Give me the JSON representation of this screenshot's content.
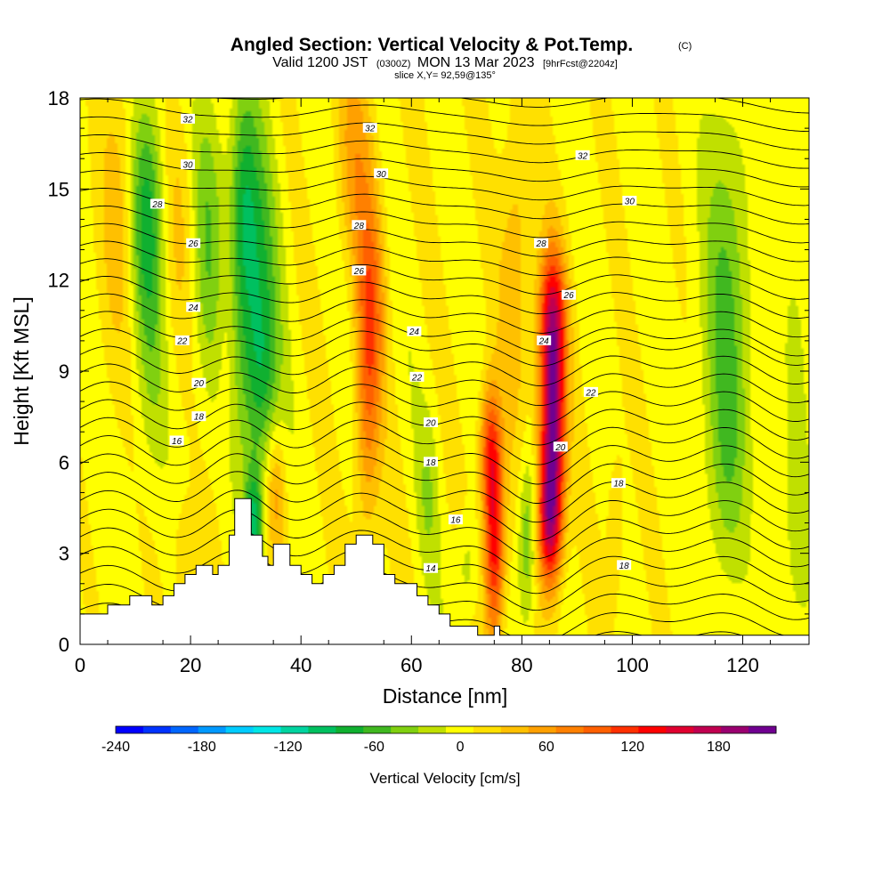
{
  "title": {
    "main": "Angled Section: Vertical Velocity & Pot.Temp.",
    "main_badge": "(C)",
    "sub_valid": "Valid 1200 JST",
    "sub_utc": "(0300Z)",
    "sub_date": "MON 13 Mar 2023",
    "sub_fcst": "[9hrFcst@2204z]",
    "slice": "slice X,Y= 92,59@135°"
  },
  "colorbar": {
    "title": "Vertical Velocity [cm/s]",
    "tick_labels": [
      "-240",
      "-180",
      "-120",
      "-60",
      "0",
      "60",
      "120",
      "180"
    ],
    "tick_values": [
      -240,
      -180,
      -120,
      -60,
      0,
      60,
      120,
      180
    ],
    "range": [
      -240,
      220
    ],
    "colors": [
      "#0000ff",
      "#0033ff",
      "#0066ff",
      "#0099ff",
      "#00ccff",
      "#00e6e6",
      "#00d4a0",
      "#00c060",
      "#10b030",
      "#40b820",
      "#80d010",
      "#c0e000",
      "#ffff00",
      "#ffe000",
      "#ffc000",
      "#ffa000",
      "#ff8000",
      "#ff6000",
      "#ff3000",
      "#ff0000",
      "#e00030",
      "#c00050",
      "#9a0070",
      "#700090"
    ]
  },
  "chart_data": {
    "type": "heatmap",
    "xlabel": "Distance [nm]",
    "ylabel": "Height [Kft MSL]",
    "xlim": [
      0,
      132
    ],
    "ylim": [
      0,
      18
    ],
    "x_ticks": [
      0,
      20,
      40,
      60,
      80,
      100,
      120
    ],
    "y_ticks": [
      0,
      3,
      6,
      9,
      12,
      15,
      18
    ],
    "series": [
      {
        "name": "Vertical Velocity",
        "units": "cm/s"
      },
      {
        "name": "Pot.Temp.",
        "units": "C"
      }
    ],
    "terrain_kft": [
      [
        0,
        1.0
      ],
      [
        5,
        1.0
      ],
      [
        5,
        1.3
      ],
      [
        9,
        1.3
      ],
      [
        9,
        1.6
      ],
      [
        13,
        1.6
      ],
      [
        13,
        1.3
      ],
      [
        15,
        1.3
      ],
      [
        15,
        1.6
      ],
      [
        17,
        1.6
      ],
      [
        17,
        2.0
      ],
      [
        19,
        2.0
      ],
      [
        19,
        2.3
      ],
      [
        21,
        2.3
      ],
      [
        21,
        2.6
      ],
      [
        24,
        2.6
      ],
      [
        24,
        2.3
      ],
      [
        25,
        2.3
      ],
      [
        25,
        2.6
      ],
      [
        27,
        2.6
      ],
      [
        27,
        3.6
      ],
      [
        28,
        3.6
      ],
      [
        28,
        4.8
      ],
      [
        31,
        4.8
      ],
      [
        31,
        3.6
      ],
      [
        33,
        3.6
      ],
      [
        33,
        2.9
      ],
      [
        34,
        2.9
      ],
      [
        34,
        2.6
      ],
      [
        35,
        2.6
      ],
      [
        35,
        3.3
      ],
      [
        38,
        3.3
      ],
      [
        38,
        2.6
      ],
      [
        40,
        2.6
      ],
      [
        40,
        2.3
      ],
      [
        42,
        2.3
      ],
      [
        42,
        2.0
      ],
      [
        44,
        2.0
      ],
      [
        44,
        2.3
      ],
      [
        46,
        2.3
      ],
      [
        46,
        2.6
      ],
      [
        48,
        2.6
      ],
      [
        48,
        3.3
      ],
      [
        50,
        3.3
      ],
      [
        50,
        3.6
      ],
      [
        53,
        3.6
      ],
      [
        53,
        3.3
      ],
      [
        55,
        3.3
      ],
      [
        55,
        2.3
      ],
      [
        57,
        2.3
      ],
      [
        57,
        2.0
      ],
      [
        61,
        2.0
      ],
      [
        61,
        1.6
      ],
      [
        63,
        1.6
      ],
      [
        63,
        1.3
      ],
      [
        65,
        1.3
      ],
      [
        65,
        1.0
      ],
      [
        67,
        1.0
      ],
      [
        67,
        0.6
      ],
      [
        72,
        0.6
      ],
      [
        72,
        0.3
      ],
      [
        75,
        0.3
      ],
      [
        75,
        0.6
      ],
      [
        76,
        0.6
      ],
      [
        76,
        0.3
      ],
      [
        132,
        0.3
      ]
    ],
    "theta_contours_c": [
      14,
      16,
      18,
      20,
      22,
      24,
      26,
      28,
      30,
      32
    ],
    "theta_labels": [
      {
        "v": "32",
        "x": 19.5,
        "y": 17.3
      },
      {
        "v": "30",
        "x": 19.5,
        "y": 15.8
      },
      {
        "v": "28",
        "x": 14,
        "y": 14.5
      },
      {
        "v": "26",
        "x": 20.5,
        "y": 13.2
      },
      {
        "v": "24",
        "x": 20.5,
        "y": 11.1
      },
      {
        "v": "22",
        "x": 18.5,
        "y": 10.0
      },
      {
        "v": "20",
        "x": 21.5,
        "y": 8.6
      },
      {
        "v": "18",
        "x": 21.5,
        "y": 7.5
      },
      {
        "v": "16",
        "x": 17.5,
        "y": 6.7
      },
      {
        "v": "32",
        "x": 52.5,
        "y": 17.0
      },
      {
        "v": "30",
        "x": 54.5,
        "y": 15.5
      },
      {
        "v": "28",
        "x": 50.5,
        "y": 13.8
      },
      {
        "v": "26",
        "x": 50.5,
        "y": 12.3
      },
      {
        "v": "24",
        "x": 60.5,
        "y": 10.3
      },
      {
        "v": "22",
        "x": 61,
        "y": 8.8
      },
      {
        "v": "20",
        "x": 63.5,
        "y": 7.3
      },
      {
        "v": "18",
        "x": 63.5,
        "y": 6.0
      },
      {
        "v": "16",
        "x": 68,
        "y": 4.1
      },
      {
        "v": "14",
        "x": 63.5,
        "y": 2.5
      },
      {
        "v": "32",
        "x": 91,
        "y": 16.1
      },
      {
        "v": "30",
        "x": 99.5,
        "y": 14.6
      },
      {
        "v": "28",
        "x": 83.5,
        "y": 13.2
      },
      {
        "v": "26",
        "x": 88.5,
        "y": 11.5
      },
      {
        "v": "24",
        "x": 84,
        "y": 10.0
      },
      {
        "v": "22",
        "x": 92.5,
        "y": 8.3
      },
      {
        "v": "20",
        "x": 87,
        "y": 6.5
      },
      {
        "v": "18",
        "x": 97.5,
        "y": 5.3
      },
      {
        "v": "18",
        "x": 98.5,
        "y": 2.6
      }
    ],
    "vv_features": [
      {
        "x": 12,
        "z": 14,
        "sx": 2.2,
        "sz": 2.8,
        "v": -80
      },
      {
        "x": 13,
        "z": 9,
        "sx": 2.0,
        "sz": 2.5,
        "v": -25
      },
      {
        "x": 23,
        "z": 13.5,
        "sx": 2.0,
        "sz": 3.5,
        "v": -45
      },
      {
        "x": 31,
        "z": 12,
        "sx": 3.0,
        "sz": 3.5,
        "v": -85
      },
      {
        "x": 33,
        "z": 8.5,
        "sx": 2.0,
        "sz": 2.0,
        "v": -50
      },
      {
        "x": 29.5,
        "z": 15,
        "sx": 1.6,
        "sz": 2.5,
        "v": -40
      },
      {
        "x": 31.5,
        "z": 4,
        "sx": 1.2,
        "sz": 1.3,
        "v": -90
      },
      {
        "x": 7,
        "z": 14,
        "sx": 2.5,
        "sz": 3.5,
        "v": 35
      },
      {
        "x": 18,
        "z": 14,
        "sx": 2.2,
        "sz": 3.0,
        "v": 25
      },
      {
        "x": 26.5,
        "z": 10,
        "sx": 1.4,
        "sz": 2.5,
        "v": 25
      },
      {
        "x": 52,
        "z": 8,
        "sx": 1.6,
        "sz": 3.5,
        "v": 70
      },
      {
        "x": 50,
        "z": 16,
        "sx": 2.5,
        "sz": 2.8,
        "v": 45
      },
      {
        "x": 53,
        "z": 11.5,
        "sx": 1.8,
        "sz": 2.5,
        "v": 50
      },
      {
        "x": 35.5,
        "z": 5,
        "sx": 1.2,
        "sz": 1.5,
        "v": 45
      },
      {
        "x": 19,
        "z": 3,
        "sx": 1.4,
        "sz": 1.2,
        "v": 30
      },
      {
        "x": 75,
        "z": 3.5,
        "sx": 1.3,
        "sz": 2.5,
        "v": 140
      },
      {
        "x": 74,
        "z": 6.5,
        "sx": 1.3,
        "sz": 1.5,
        "v": 80
      },
      {
        "x": 85.5,
        "z": 7.5,
        "sx": 1.6,
        "sz": 2.8,
        "v": 200
      },
      {
        "x": 85,
        "z": 4,
        "sx": 1.5,
        "sz": 1.5,
        "v": 120
      },
      {
        "x": 85.5,
        "z": 11,
        "sx": 1.8,
        "sz": 1.5,
        "v": 80
      },
      {
        "x": 79,
        "z": 13,
        "sx": 2.0,
        "sz": 4.0,
        "v": 40
      },
      {
        "x": 81,
        "z": 3.5,
        "sx": 1.2,
        "sz": 2.0,
        "v": -60
      },
      {
        "x": 63,
        "z": 5,
        "sx": 1.4,
        "sz": 2.0,
        "v": -25
      },
      {
        "x": 70,
        "z": 2.5,
        "sx": 1.5,
        "sz": 1.2,
        "v": -30
      },
      {
        "x": 117,
        "z": 11,
        "sx": 3.0,
        "sz": 4.5,
        "v": -55
      },
      {
        "x": 117,
        "z": 5.5,
        "sx": 2.5,
        "sz": 2.5,
        "v": -25
      },
      {
        "x": 97,
        "z": 4,
        "sx": 1.2,
        "sz": 2.0,
        "v": 25
      },
      {
        "x": 130,
        "z": 9,
        "sx": 2.0,
        "sz": 5.0,
        "v": -15
      },
      {
        "x": 130,
        "z": 3,
        "sx": 2.0,
        "sz": 2.0,
        "v": -15
      }
    ]
  }
}
